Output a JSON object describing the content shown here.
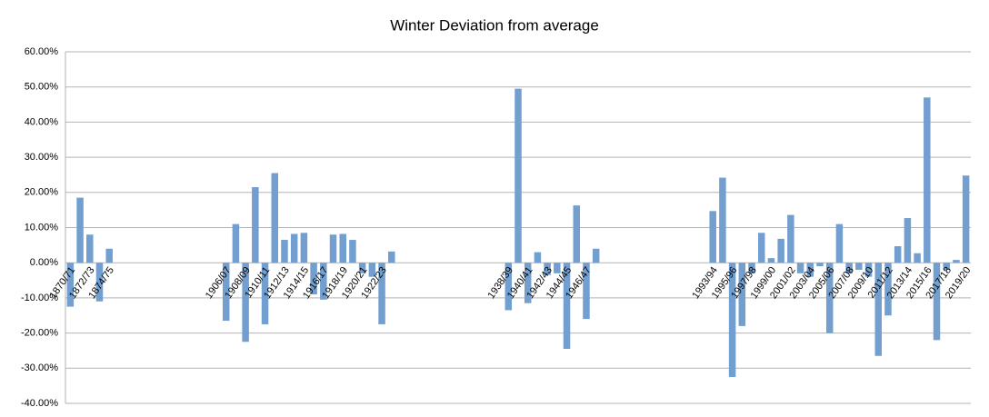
{
  "chart_data": {
    "type": "bar",
    "title": "Winter Deviation from average",
    "categories": [
      "1870/71",
      null,
      "1872/73",
      null,
      "1874/75",
      null,
      null,
      null,
      null,
      null,
      null,
      null,
      null,
      null,
      null,
      null,
      "1906/07",
      null,
      "1908/09",
      null,
      "1910/11",
      null,
      "1912/13",
      null,
      "1914/15",
      null,
      "1916/17",
      null,
      "1918/19",
      null,
      "1920/21",
      null,
      "1922/23",
      null,
      null,
      null,
      null,
      null,
      null,
      null,
      null,
      null,
      null,
      null,
      null,
      "1938/39",
      null,
      "1940/41",
      null,
      "1942/43",
      null,
      "1944/45",
      null,
      "1946/47",
      null,
      null,
      null,
      null,
      null,
      null,
      null,
      null,
      null,
      null,
      null,
      null,
      "1993/94",
      null,
      "1995/96",
      null,
      "1997/98",
      null,
      "1999/00",
      null,
      "2001/02",
      null,
      "2003/04",
      null,
      "2005/06",
      null,
      "2007/08",
      null,
      "2009/10",
      null,
      "2011/12",
      null,
      "2013/14",
      null,
      "2015/16",
      null,
      "2017/18",
      null,
      "2019/20"
    ],
    "values": [
      -12.5,
      18.5,
      8,
      -11,
      4,
      null,
      null,
      null,
      null,
      null,
      null,
      null,
      null,
      null,
      null,
      null,
      -16.5,
      11,
      -22.5,
      21.5,
      -17.5,
      25.5,
      6.5,
      8.2,
      8.5,
      -9,
      -10.5,
      8,
      8.2,
      6.5,
      -3,
      -4,
      -17.5,
      3.2,
      null,
      null,
      null,
      null,
      null,
      null,
      null,
      null,
      null,
      null,
      null,
      -13.5,
      49.5,
      -11.5,
      3,
      -3.5,
      -3,
      -24.5,
      16.3,
      -16,
      4,
      null,
      null,
      null,
      null,
      null,
      null,
      null,
      null,
      null,
      null,
      null,
      14.7,
      24.2,
      -32.5,
      -18,
      -3,
      8.5,
      1.3,
      6.8,
      13.6,
      -3,
      -4,
      -1,
      -20,
      11,
      -3,
      -2,
      -4,
      -26.5,
      -15,
      4.7,
      12.7,
      2.7,
      47,
      -22,
      -2,
      0.8,
      24.8
    ],
    "color": "#729fcf",
    "ylim": [
      -40,
      60
    ],
    "yticks": [
      {
        "value": -40,
        "label": "-40.00%"
      },
      {
        "value": -30,
        "label": "-30.00%"
      },
      {
        "value": -20,
        "label": "-20.00%"
      },
      {
        "value": -10,
        "label": "-10.00%"
      },
      {
        "value": 0,
        "label": "0.00%"
      },
      {
        "value": 10,
        "label": "10.00%"
      },
      {
        "value": 20,
        "label": "20.00%"
      },
      {
        "value": 30,
        "label": "30.00%"
      },
      {
        "value": 40,
        "label": "40.00%"
      },
      {
        "value": 50,
        "label": "50.00%"
      },
      {
        "value": 60,
        "label": "60.00%"
      }
    ],
    "grid": true
  }
}
